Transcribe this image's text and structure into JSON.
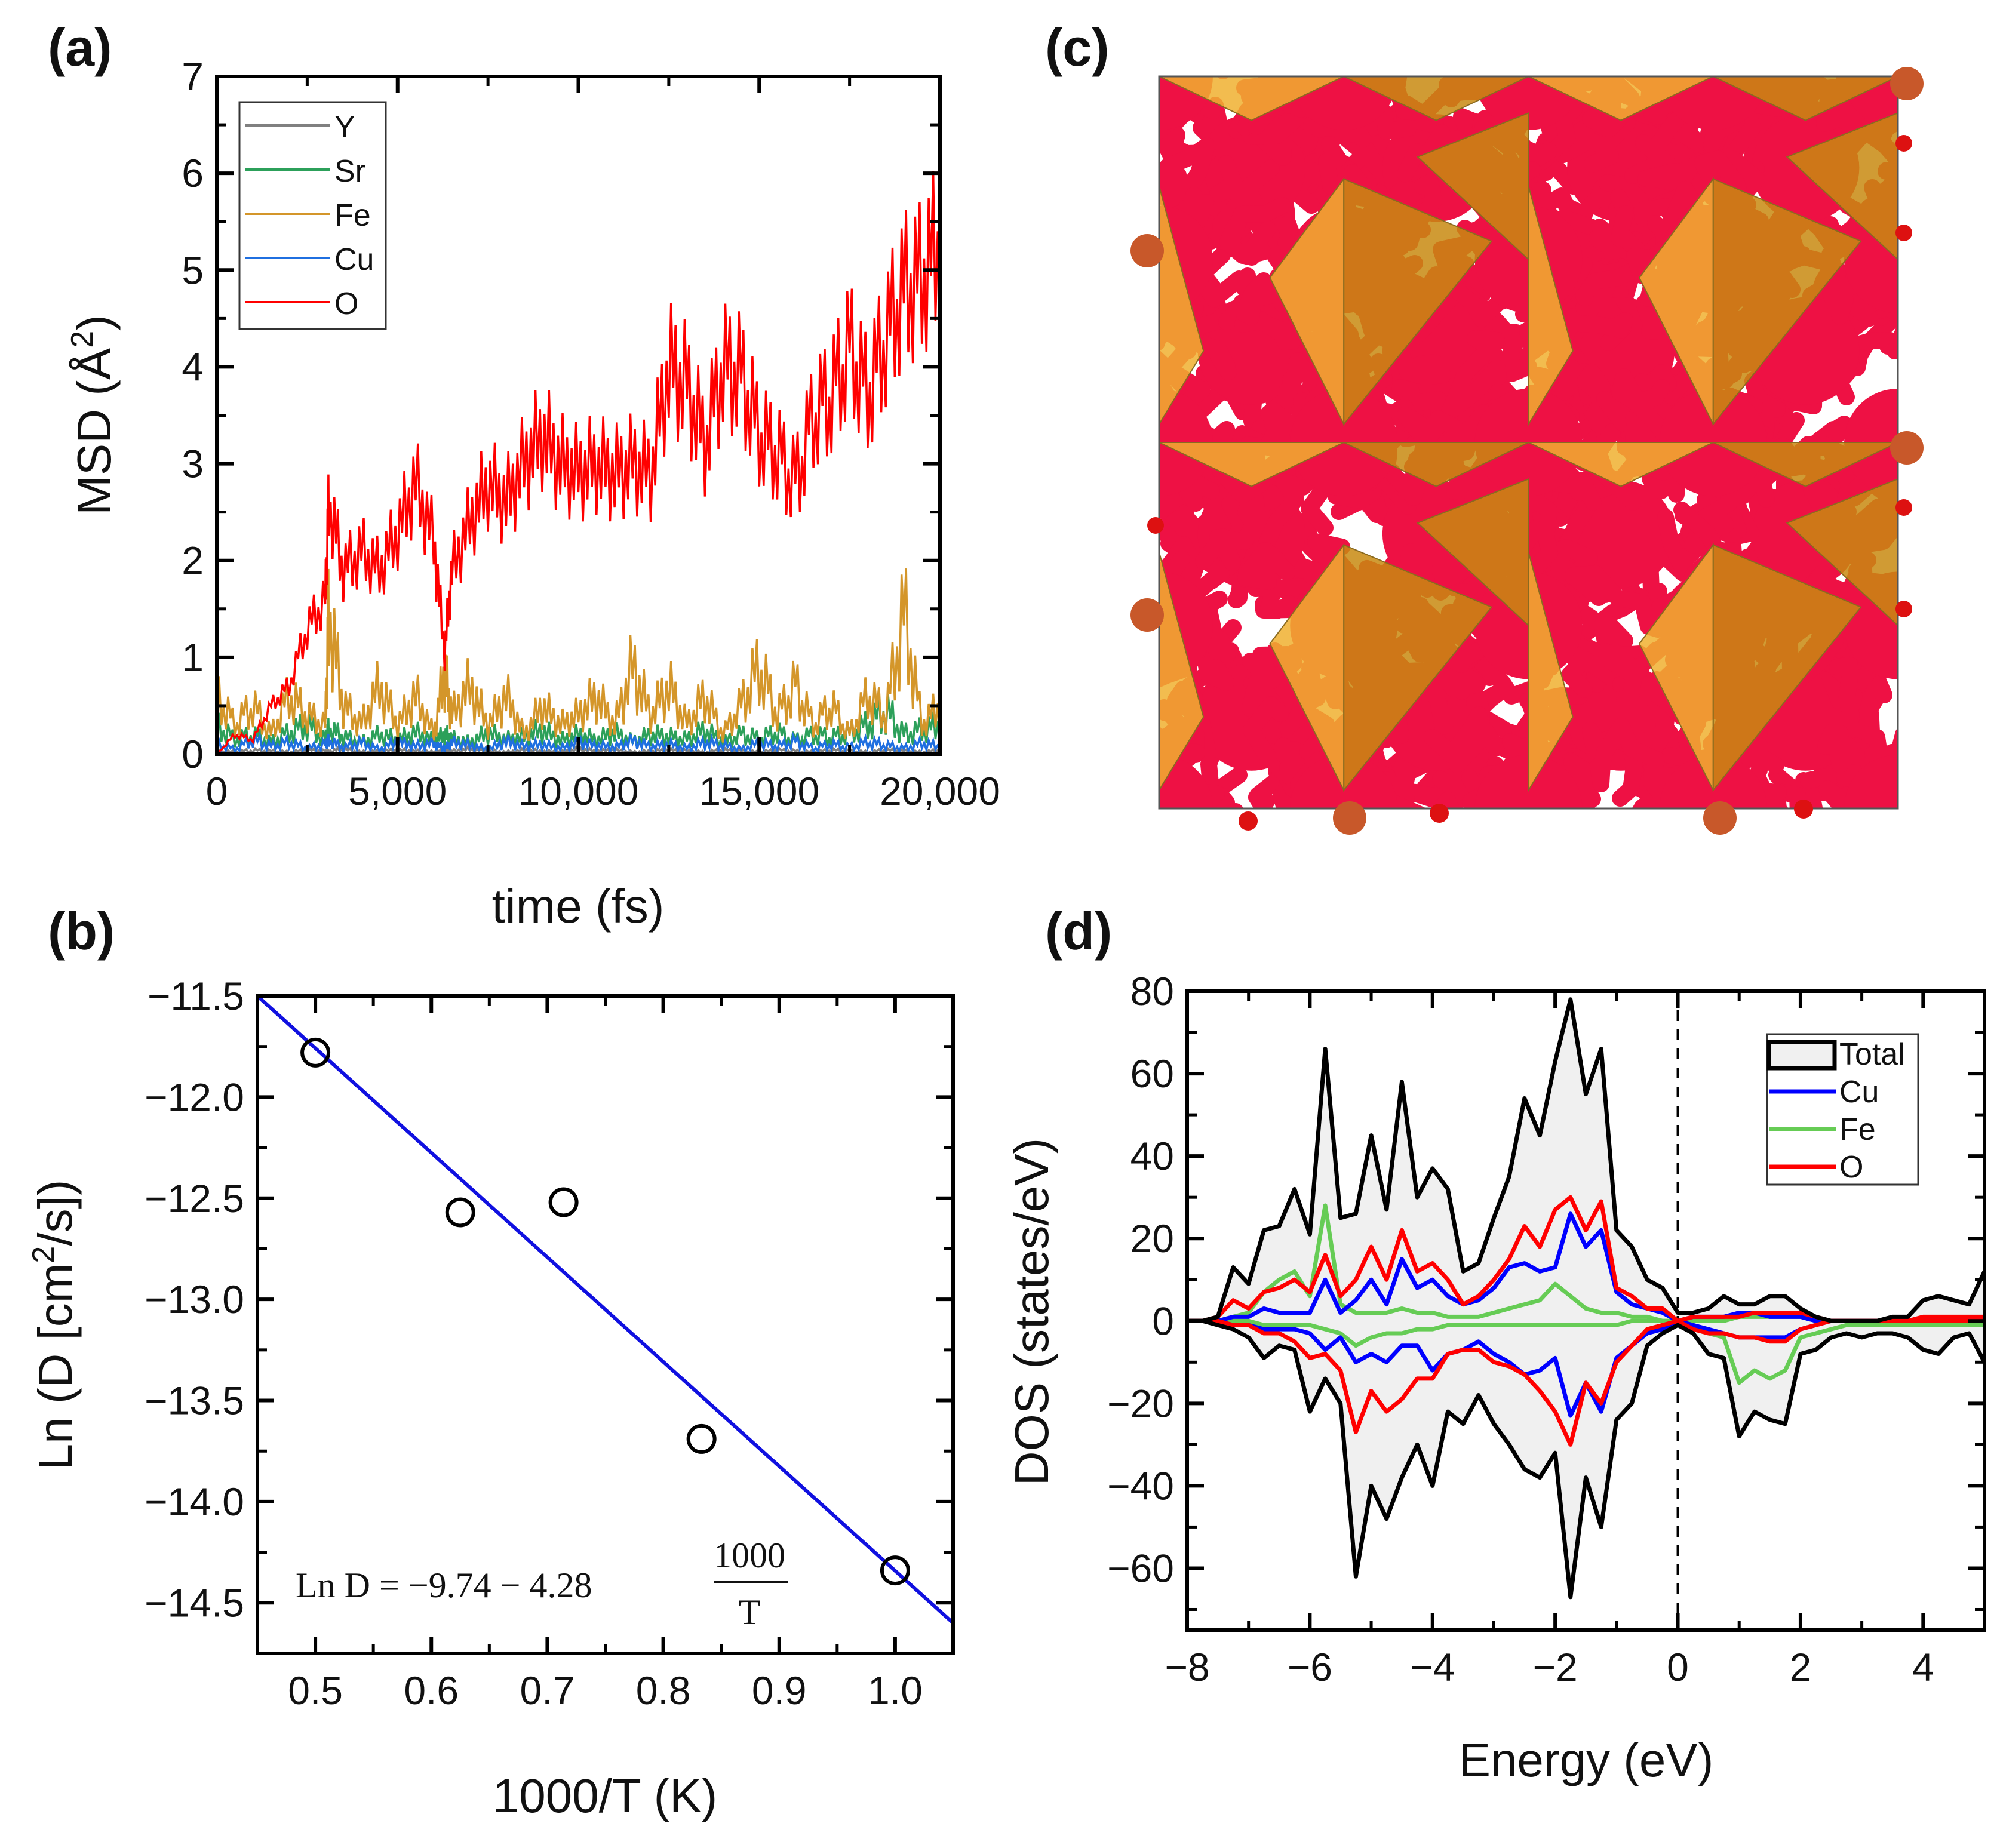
{
  "panel_labels": {
    "a": "(a)",
    "b": "(b)",
    "c": "(c)",
    "d": "(d)"
  },
  "colors": {
    "Y": "#808080",
    "Sr": "#2ca05a",
    "Fe": "#d4962a",
    "Cu": "#1f6fe0",
    "O": "#ff0000",
    "fit": "#1010e0",
    "dos_Cu": "#0000ff",
    "dos_Fe": "#66cc55",
    "dos_O": "#ff0000",
    "dos_Total": "#000000",
    "dos_fill": "#f0f0f0"
  },
  "chart_data": [
    {
      "id": "a",
      "type": "line",
      "title": "",
      "xlabel": "time (fs)",
      "ylabel_parts": [
        "MSD (Å",
        "2",
        ")"
      ],
      "xlim": [
        0,
        20000
      ],
      "ylim": [
        0,
        7
      ],
      "xticks": [
        0,
        5000,
        10000,
        15000,
        20000
      ],
      "xtick_labels": [
        "0",
        "5,000",
        "10,000",
        "15,000",
        "20,000"
      ],
      "yticks": [
        0,
        1,
        2,
        3,
        4,
        5,
        6,
        7
      ],
      "ytick_labels": [
        "0",
        "1",
        "2",
        "3",
        "4",
        "5",
        "6",
        "7"
      ],
      "legend_position": "top-left",
      "x": [
        0,
        500,
        1000,
        1500,
        2000,
        2500,
        3000,
        3100,
        3500,
        4000,
        4500,
        5000,
        5500,
        6000,
        6300,
        6500,
        7000,
        7500,
        8000,
        8500,
        9000,
        9500,
        10000,
        10500,
        11000,
        11500,
        12000,
        12500,
        13000,
        13500,
        14000,
        14500,
        15000,
        15500,
        16000,
        16500,
        17000,
        17500,
        18000,
        18500,
        19000,
        19500,
        20000
      ],
      "series": [
        {
          "name": "Y",
          "values": [
            0.03,
            0.02,
            0.04,
            0.03,
            0.02,
            0.04,
            0.03,
            0.03,
            0.05,
            0.02,
            0.03,
            0.04,
            0.03,
            0.02,
            0.04,
            0.03,
            0.05,
            0.03,
            0.02,
            0.04,
            0.03,
            0.02,
            0.05,
            0.03,
            0.04,
            0.02,
            0.03,
            0.04,
            0.03,
            0.02,
            0.04,
            0.03,
            0.02,
            0.04,
            0.03,
            0.02,
            0.04,
            0.03,
            0.02,
            0.04,
            0.03,
            0.02,
            0.04
          ]
        },
        {
          "name": "Sr",
          "values": [
            0.3,
            0.15,
            0.2,
            0.12,
            0.22,
            0.3,
            0.15,
            0.25,
            0.18,
            0.12,
            0.2,
            0.15,
            0.22,
            0.14,
            0.2,
            0.16,
            0.12,
            0.22,
            0.15,
            0.18,
            0.25,
            0.14,
            0.2,
            0.15,
            0.22,
            0.13,
            0.2,
            0.18,
            0.15,
            0.25,
            0.12,
            0.2,
            0.16,
            0.22,
            0.14,
            0.2,
            0.17,
            0.22,
            0.3,
            0.45,
            0.2,
            0.25,
            0.3
          ]
        },
        {
          "name": "Fe",
          "values": [
            0.6,
            0.3,
            0.5,
            0.2,
            0.6,
            0.4,
            0.3,
            1.45,
            0.5,
            0.3,
            0.7,
            0.3,
            0.6,
            0.2,
            0.85,
            0.4,
            0.7,
            0.3,
            0.6,
            0.2,
            0.5,
            0.3,
            0.4,
            0.6,
            0.3,
            0.9,
            0.4,
            0.7,
            0.3,
            0.6,
            0.2,
            0.5,
            0.9,
            0.4,
            0.7,
            0.3,
            0.5,
            0.2,
            0.6,
            0.4,
            1.45,
            0.3,
            0.5
          ]
        },
        {
          "name": "Cu",
          "values": [
            0.1,
            0.05,
            0.15,
            0.08,
            0.12,
            0.06,
            0.1,
            0.14,
            0.07,
            0.12,
            0.05,
            0.13,
            0.08,
            0.11,
            0.06,
            0.12,
            0.09,
            0.05,
            0.13,
            0.08,
            0.1,
            0.06,
            0.12,
            0.09,
            0.07,
            0.14,
            0.08,
            0.1,
            0.06,
            0.12,
            0.09,
            0.05,
            0.11,
            0.08,
            0.13,
            0.06,
            0.1,
            0.07,
            0.12,
            0.09,
            0.06,
            0.11,
            0.08
          ]
        },
        {
          "name": "O",
          "values": [
            0.0,
            0.2,
            0.15,
            0.5,
            0.7,
            1.3,
            1.6,
            2.6,
            1.9,
            2.1,
            1.9,
            2.3,
            2.8,
            2.2,
            1.05,
            1.9,
            2.4,
            2.8,
            2.6,
            3.0,
            3.3,
            3.0,
            2.9,
            3.0,
            2.9,
            3.0,
            2.9,
            4.0,
            3.8,
            3.2,
            4.0,
            3.9,
            3.3,
            3.1,
            2.8,
            3.5,
            3.7,
            4.2,
            3.7,
            4.3,
            4.8,
            4.9,
            5.3
          ]
        }
      ]
    },
    {
      "id": "b",
      "type": "scatter",
      "xlabel": "1000/T (K)",
      "ylabel_parts": [
        "Ln (D [cm",
        "2",
        "/s])"
      ],
      "xlim": [
        0.45,
        1.05
      ],
      "ylim": [
        -14.75,
        -11.5
      ],
      "xticks": [
        0.5,
        0.6,
        0.7,
        0.8,
        0.9,
        1.0
      ],
      "xtick_labels": [
        "0.5",
        "0.6",
        "0.7",
        "0.8",
        "0.9",
        "1.0"
      ],
      "yticks": [
        -14.5,
        -14.0,
        -13.5,
        -13.0,
        -12.5,
        -12.0,
        -11.5
      ],
      "ytick_labels": [
        "−14.5",
        "−14.0",
        "−13.5",
        "−13.0",
        "−12.5",
        "−12.0",
        "−11.5"
      ],
      "points": {
        "x": [
          0.5,
          0.625,
          0.714,
          0.833,
          1.0
        ],
        "y": [
          -11.78,
          -12.57,
          -12.52,
          -13.69,
          -14.34
        ]
      },
      "fit_line": {
        "x": [
          0.45,
          1.05
        ],
        "y": [
          -11.5,
          -14.6
        ]
      },
      "annotation": {
        "lhs": "Ln D = −9.74 − 4.28",
        "numerator": "1000",
        "denominator": "T"
      }
    },
    {
      "id": "d",
      "type": "line",
      "xlabel": "Energy (eV)",
      "ylabel": "DOS (states/eV)",
      "xlim": [
        -8,
        5
      ],
      "ylim": [
        -75,
        80
      ],
      "xticks": [
        -8,
        -6,
        -4,
        -2,
        0,
        2,
        4
      ],
      "xtick_labels": [
        "−8",
        "−6",
        "−4",
        "−2",
        "0",
        "2",
        "4"
      ],
      "yticks": [
        -60,
        -40,
        -20,
        0,
        20,
        40,
        60,
        80
      ],
      "ytick_labels": [
        "−60",
        "−40",
        "−20",
        "0",
        "20",
        "40",
        "60",
        "80"
      ],
      "fermi_level": 0,
      "legend_position": "top-right",
      "legend": [
        "Total",
        "Cu",
        "Fe",
        "O"
      ],
      "x": [
        -8,
        -7.75,
        -7.5,
        -7.25,
        -7,
        -6.75,
        -6.5,
        -6.25,
        -6,
        -5.75,
        -5.5,
        -5.25,
        -5,
        -4.75,
        -4.5,
        -4.25,
        -4,
        -3.75,
        -3.5,
        -3.25,
        -3,
        -2.75,
        -2.5,
        -2.25,
        -2,
        -1.75,
        -1.5,
        -1.25,
        -1,
        -0.75,
        -0.5,
        -0.25,
        0,
        0.25,
        0.5,
        0.75,
        1,
        1.25,
        1.5,
        1.75,
        2,
        2.25,
        2.5,
        2.75,
        3,
        3.25,
        3.5,
        3.75,
        4,
        4.25,
        4.5,
        4.75,
        5
      ],
      "series": [
        {
          "name": "Total",
          "up": [
            0,
            0,
            1,
            13,
            9,
            22,
            23,
            32,
            21,
            66,
            25,
            26,
            45,
            27,
            58,
            30,
            37,
            32,
            12,
            14,
            25,
            35,
            54,
            45,
            63,
            78,
            55,
            66,
            22,
            18,
            10,
            8,
            2,
            2,
            3,
            6,
            4,
            4,
            6,
            6,
            3,
            1,
            0,
            0,
            0,
            0,
            1,
            1,
            5,
            6,
            5,
            4,
            12
          ],
          "down": [
            0,
            0,
            -1,
            -2,
            -4,
            -9,
            -6,
            -7,
            -22,
            -14,
            -20,
            -62,
            -40,
            -48,
            -38,
            -30,
            -40,
            -22,
            -25,
            -18,
            -25,
            -30,
            -36,
            -38,
            -32,
            -67,
            -38,
            -50,
            -24,
            -20,
            -6,
            -3,
            -1,
            -3,
            -8,
            -9,
            -28,
            -22,
            -24,
            -25,
            -8,
            -7,
            -4,
            -3,
            -4,
            -3,
            -3,
            -4,
            -7,
            -8,
            -4,
            -3,
            -10
          ]
        },
        {
          "name": "Cu",
          "up": [
            0,
            0,
            0,
            1,
            1,
            3,
            2,
            2,
            2,
            10,
            2,
            5,
            10,
            4,
            15,
            8,
            10,
            6,
            4,
            5,
            8,
            13,
            14,
            12,
            13,
            26,
            18,
            22,
            7,
            4,
            3,
            2,
            0,
            1,
            1,
            1,
            2,
            2,
            1,
            1,
            1,
            0,
            0,
            0,
            0,
            0,
            0,
            0,
            0,
            0,
            0,
            0,
            0
          ],
          "down": [
            0,
            0,
            0,
            -1,
            -1,
            -2,
            -2,
            -2,
            -3,
            -7,
            -4,
            -10,
            -8,
            -10,
            -6,
            -6,
            -12,
            -8,
            -7,
            -5,
            -8,
            -10,
            -13,
            -12,
            -9,
            -23,
            -15,
            -22,
            -9,
            -6,
            -3,
            -2,
            0,
            -1,
            -2,
            -3,
            -4,
            -4,
            -4,
            -4,
            -2,
            -1,
            0,
            0,
            0,
            0,
            0,
            0,
            0,
            0,
            0,
            0,
            0
          ]
        },
        {
          "name": "Fe",
          "up": [
            0,
            0,
            0,
            1,
            2,
            7,
            10,
            12,
            6,
            28,
            4,
            2,
            2,
            2,
            3,
            2,
            2,
            1,
            1,
            1,
            2,
            3,
            4,
            5,
            9,
            6,
            3,
            2,
            2,
            1,
            1,
            0,
            0,
            0,
            0,
            0,
            1,
            1,
            1,
            1,
            1,
            0,
            0,
            0,
            0,
            0,
            0,
            0,
            0,
            0,
            0,
            0,
            0
          ],
          "down": [
            0,
            0,
            0,
            0,
            0,
            -1,
            -1,
            -1,
            -1,
            -2,
            -3,
            -6,
            -4,
            -3,
            -3,
            -2,
            -2,
            -1,
            -1,
            -1,
            -1,
            -1,
            -1,
            -1,
            -1,
            -1,
            -1,
            -1,
            -1,
            0,
            0,
            0,
            0,
            -2,
            -3,
            -4,
            -15,
            -12,
            -14,
            -12,
            -4,
            -3,
            -2,
            -1,
            -1,
            -1,
            -1,
            -1,
            -1,
            -1,
            -1,
            -1,
            -1
          ]
        },
        {
          "name": "O",
          "up": [
            0,
            0,
            1,
            5,
            3,
            7,
            8,
            10,
            7,
            16,
            6,
            10,
            18,
            10,
            22,
            12,
            14,
            10,
            4,
            6,
            10,
            15,
            23,
            18,
            27,
            30,
            22,
            29,
            8,
            6,
            3,
            3,
            0,
            1,
            1,
            1,
            1,
            2,
            2,
            2,
            2,
            1,
            0,
            0,
            0,
            0,
            0,
            0,
            1,
            1,
            1,
            1,
            1
          ],
          "down": [
            0,
            0,
            0,
            -1,
            -1,
            -3,
            -3,
            -5,
            -9,
            -8,
            -12,
            -27,
            -17,
            -22,
            -19,
            -14,
            -14,
            -8,
            -7,
            -7,
            -10,
            -11,
            -13,
            -17,
            -22,
            -30,
            -15,
            -20,
            -10,
            -6,
            -2,
            -1,
            0,
            -2,
            -3,
            -3,
            -4,
            -4,
            -5,
            -5,
            -2,
            -1,
            0,
            0,
            0,
            0,
            0,
            0,
            0,
            0,
            0,
            0,
            0
          ]
        }
      ]
    }
  ]
}
